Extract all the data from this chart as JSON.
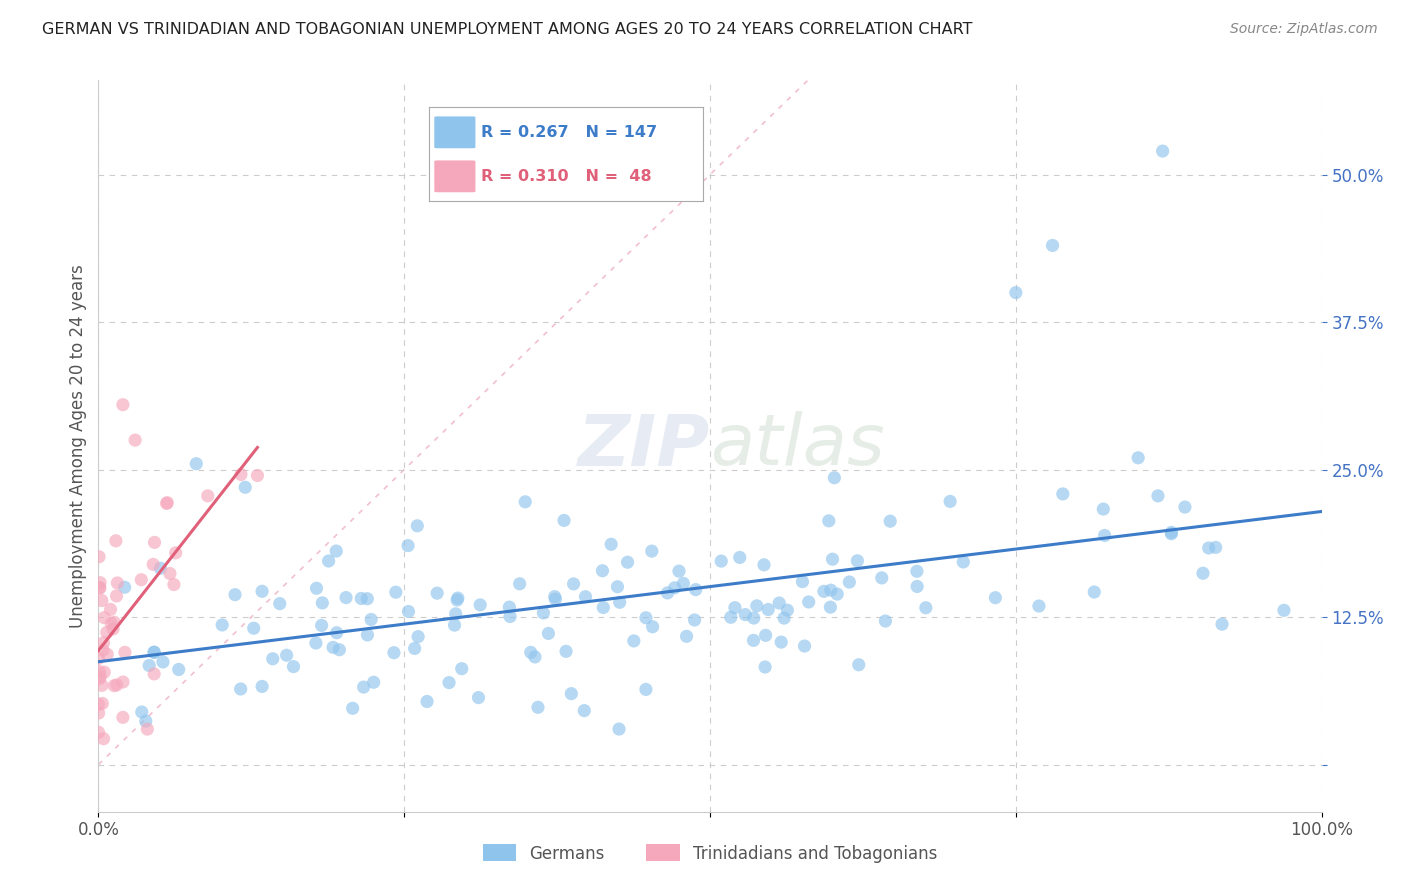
{
  "title": "GERMAN VS TRINIDADIAN AND TOBAGONIAN UNEMPLOYMENT AMONG AGES 20 TO 24 YEARS CORRELATION CHART",
  "source": "Source: ZipAtlas.com",
  "ylabel": "Unemployment Among Ages 20 to 24 years",
  "xlim": [
    0,
    1.0
  ],
  "ylim": [
    -0.04,
    0.58
  ],
  "ytick_vals": [
    0.0,
    0.125,
    0.25,
    0.375,
    0.5
  ],
  "yticklabels": [
    "",
    "12.5%",
    "25.0%",
    "37.5%",
    "50.0%"
  ],
  "xtick_vals": [
    0.0,
    0.25,
    0.5,
    0.75,
    1.0
  ],
  "xticklabels": [
    "0.0%",
    "",
    "",
    "",
    "100.0%"
  ],
  "german_color": "#8fc4ed",
  "trinidadian_color": "#f5a8bc",
  "german_line_color": "#3d7cc9",
  "trinidadian_line_color": "#e0607a",
  "diagonal_color": "#f0b8c8",
  "watermark_zip": "ZIP",
  "watermark_atlas": "atlas",
  "legend_R_german": "R = 0.267",
  "legend_N_german": "N = 147",
  "legend_R_trinidadian": "R = 0.310",
  "legend_N_trinidadian": "N =  48",
  "legend_label_german": "Germans",
  "legend_label_trinidadian": "Trinidadians and Tobagonians"
}
